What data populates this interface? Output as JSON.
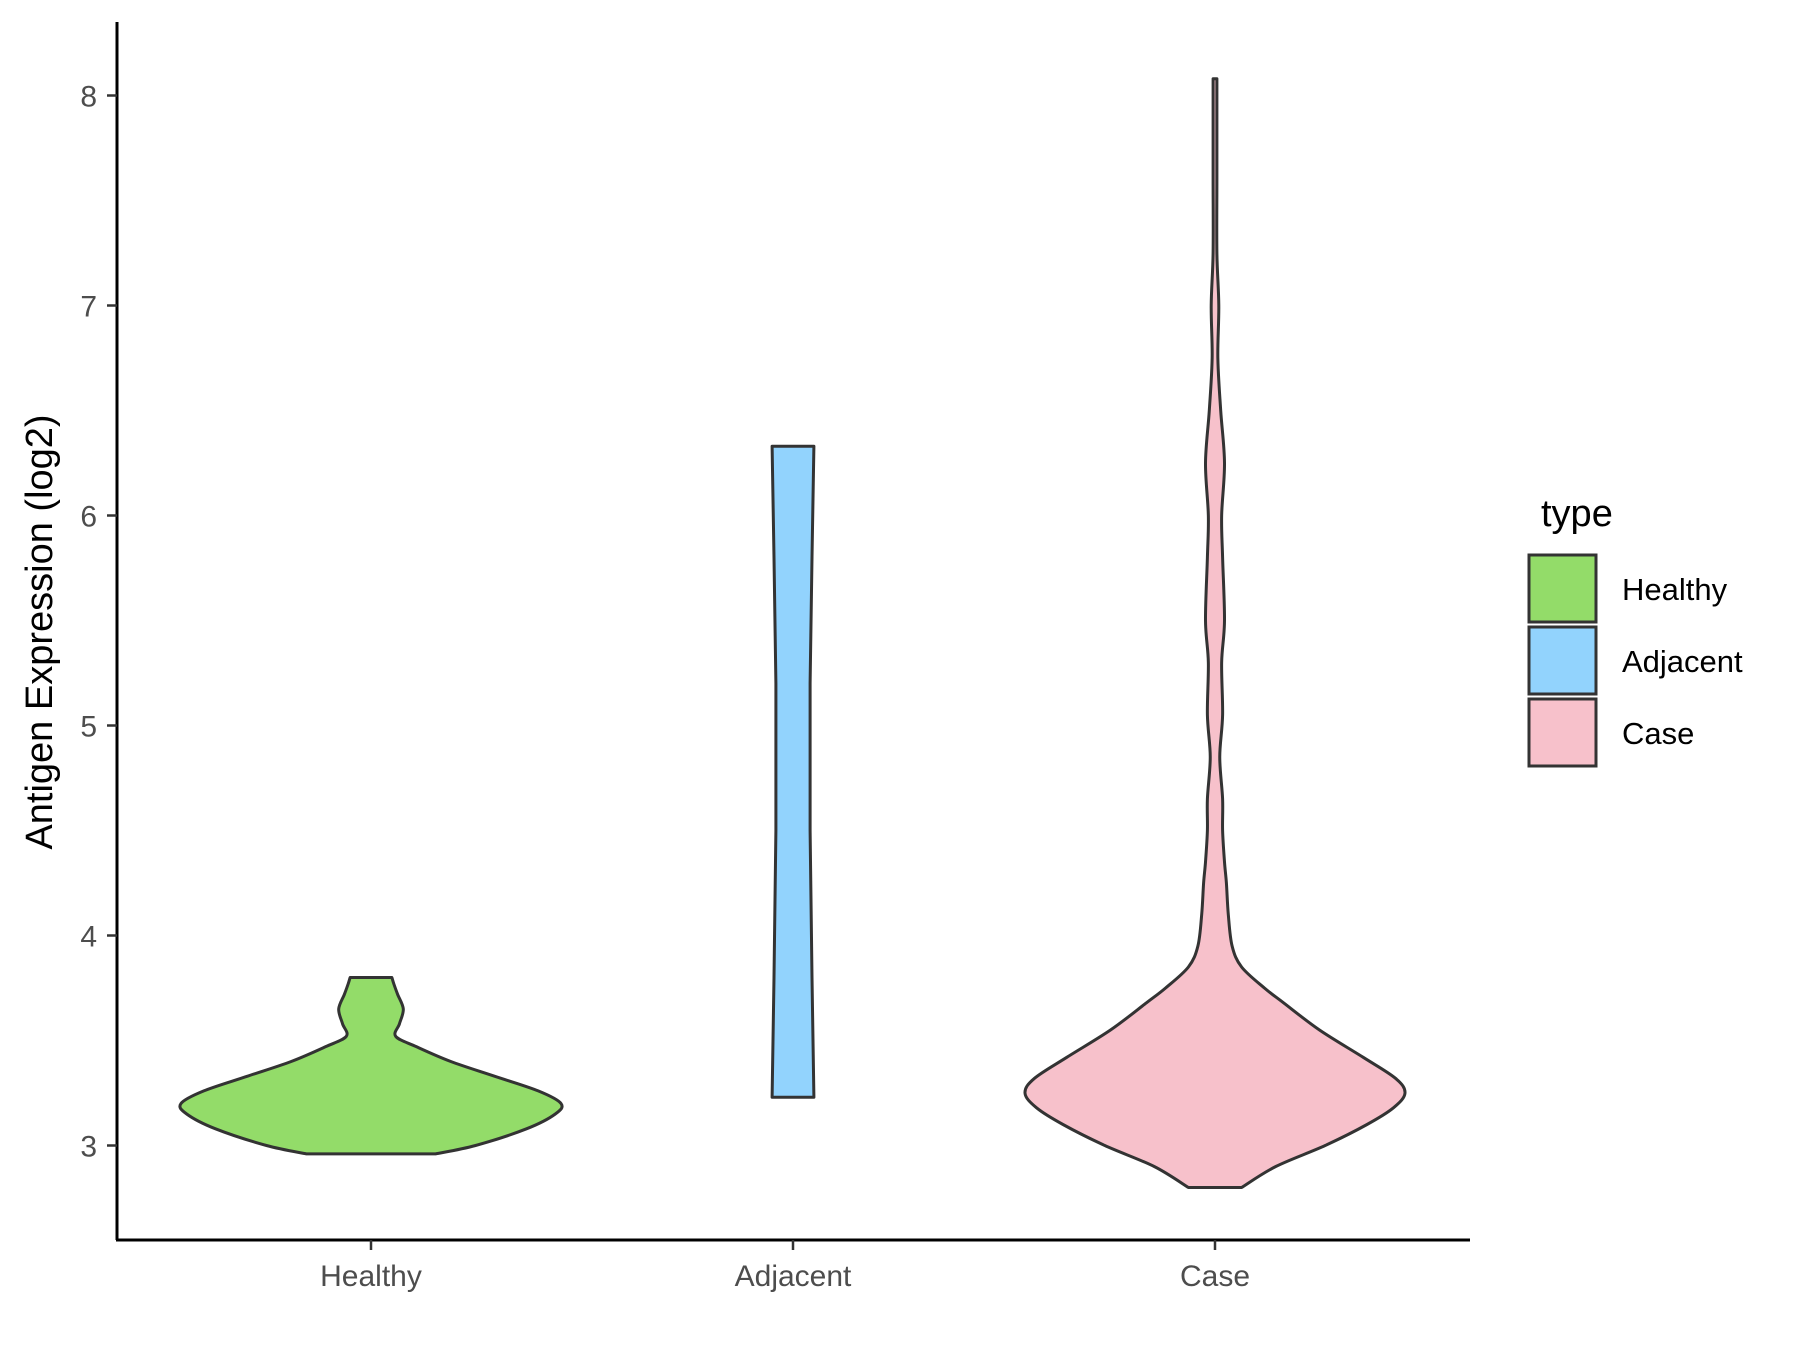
{
  "chart_data": {
    "type": "violin",
    "ylabel": "Antigen Expression (log2)",
    "xlabel": "",
    "ylim": [
      2.55,
      8.35
    ],
    "yticks": [
      3,
      4,
      5,
      6,
      7,
      8
    ],
    "categories": [
      "Healthy",
      "Adjacent",
      "Case"
    ],
    "legend": {
      "title": "type",
      "position": "right",
      "entries": [
        {
          "label": "Healthy",
          "color": "#93DC69"
        },
        {
          "label": "Adjacent",
          "color": "#92D3FD"
        },
        {
          "label": "Case",
          "color": "#F7C1CB"
        }
      ]
    },
    "series": [
      {
        "name": "Healthy",
        "color": "#93DC69",
        "min": 2.96,
        "max": 3.8,
        "profile": [
          [
            2.96,
            0.34
          ],
          [
            3.0,
            0.55
          ],
          [
            3.08,
            0.82
          ],
          [
            3.15,
            0.97
          ],
          [
            3.2,
            1.0
          ],
          [
            3.26,
            0.88
          ],
          [
            3.33,
            0.65
          ],
          [
            3.4,
            0.42
          ],
          [
            3.47,
            0.24
          ],
          [
            3.52,
            0.13
          ],
          [
            3.58,
            0.15
          ],
          [
            3.65,
            0.17
          ],
          [
            3.72,
            0.14
          ],
          [
            3.77,
            0.12
          ],
          [
            3.8,
            0.11
          ]
        ]
      },
      {
        "name": "Adjacent",
        "color": "#92D3FD",
        "min": 3.23,
        "max": 6.33,
        "profile": [
          [
            3.23,
            0.11
          ],
          [
            3.8,
            0.1
          ],
          [
            4.5,
            0.09
          ],
          [
            5.2,
            0.09
          ],
          [
            5.8,
            0.1
          ],
          [
            6.33,
            0.11
          ]
        ]
      },
      {
        "name": "Case",
        "color": "#F7C1CB",
        "min": 2.8,
        "max": 8.08,
        "profile": [
          [
            2.8,
            0.14
          ],
          [
            2.9,
            0.32
          ],
          [
            3.0,
            0.58
          ],
          [
            3.1,
            0.8
          ],
          [
            3.18,
            0.94
          ],
          [
            3.25,
            1.0
          ],
          [
            3.32,
            0.95
          ],
          [
            3.42,
            0.78
          ],
          [
            3.55,
            0.55
          ],
          [
            3.68,
            0.36
          ],
          [
            3.75,
            0.26
          ],
          [
            3.85,
            0.14
          ],
          [
            3.95,
            0.09
          ],
          [
            4.1,
            0.07
          ],
          [
            4.25,
            0.06
          ],
          [
            4.35,
            0.05
          ],
          [
            4.5,
            0.04
          ],
          [
            4.65,
            0.04
          ],
          [
            4.85,
            0.025
          ],
          [
            5.05,
            0.04
          ],
          [
            5.3,
            0.035
          ],
          [
            5.5,
            0.05
          ],
          [
            5.8,
            0.04
          ],
          [
            6.0,
            0.035
          ],
          [
            6.25,
            0.05
          ],
          [
            6.5,
            0.03
          ],
          [
            6.75,
            0.015
          ],
          [
            7.0,
            0.02
          ],
          [
            7.25,
            0.01
          ],
          [
            7.6,
            0.01
          ],
          [
            7.9,
            0.01
          ],
          [
            8.08,
            0.01
          ]
        ]
      }
    ]
  }
}
